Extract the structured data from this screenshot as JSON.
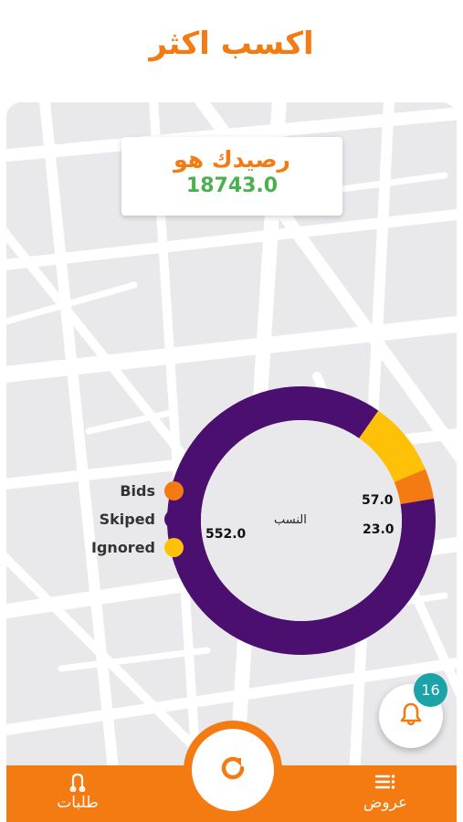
{
  "header": {
    "title": "اكسب اكثر"
  },
  "balance": {
    "label": "رصيدك هو",
    "value": "18743.0"
  },
  "chart_data": {
    "type": "pie",
    "center_label": "النسب",
    "categories": [
      "Bids",
      "Skiped",
      "Ignored"
    ],
    "series": [
      {
        "name": "Ignored",
        "value": 57.0,
        "color": "#ffc107"
      },
      {
        "name": "Bids",
        "value": 23.0,
        "color": "#f47a12"
      },
      {
        "name": "Skiped",
        "value": 552.0,
        "color": "#4a0f6f"
      }
    ],
    "labels": [
      "57.0",
      "23.0",
      "552.0"
    ],
    "legend_placement": "left"
  },
  "legend": [
    {
      "label": "Bids",
      "color": "#f47a12"
    },
    {
      "label": "Skiped",
      "color": "#4a0f6f"
    },
    {
      "label": "Ignored",
      "color": "#ffc107"
    }
  ],
  "notification": {
    "count": "16",
    "icon": "bell-icon"
  },
  "bottom_nav": {
    "left": {
      "label": "طلبات",
      "icon": "route-icon"
    },
    "center": {
      "icon": "refresh-icon"
    },
    "right": {
      "label": "عروض",
      "icon": "list-icon"
    }
  },
  "colors": {
    "accent": "#f47a12",
    "balance_value": "#4caf50",
    "badge": "#1ba3a8",
    "chart_purple": "#4a0f6f",
    "chart_yellow": "#ffc107"
  }
}
